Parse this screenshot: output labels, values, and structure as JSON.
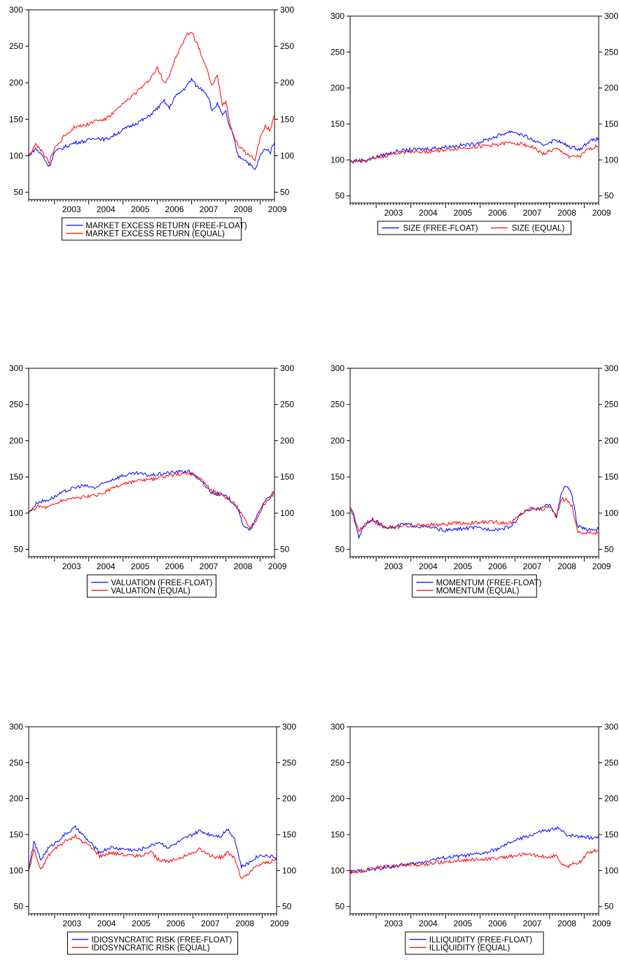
{
  "chart_data": [
    {
      "type": "line",
      "x_ticks": [
        "2003",
        "2004",
        "2005",
        "2006",
        "2007",
        "2008",
        "2009"
      ],
      "xlim": [
        "2002-04",
        "2009-06"
      ],
      "y_ticks": [
        50,
        100,
        150,
        200,
        250,
        300
      ],
      "ylim": [
        40,
        300
      ],
      "grid": false,
      "legend_position": "bottom",
      "legend_layout": "stacked",
      "series": [
        {
          "name": "MARKET EXCESS RETURN (FREE-FLOAT)",
          "color": "#0000ff",
          "x": [
            2002.25,
            2002.45,
            2002.65,
            2002.85,
            2003.0,
            2003.3,
            2003.6,
            2003.9,
            2004.2,
            2004.5,
            2004.8,
            2005.1,
            2005.4,
            2005.7,
            2006.0,
            2006.2,
            2006.35,
            2006.5,
            2006.7,
            2006.85,
            2007.0,
            2007.15,
            2007.35,
            2007.5,
            2007.6,
            2007.75,
            2007.9,
            2008.0,
            2008.1,
            2008.2,
            2008.35,
            2008.55,
            2008.7,
            2008.85,
            2009.0,
            2009.15,
            2009.3,
            2009.45
          ],
          "y": [
            100,
            110,
            100,
            85,
            105,
            112,
            118,
            120,
            125,
            122,
            130,
            138,
            145,
            152,
            165,
            175,
            165,
            180,
            188,
            195,
            205,
            195,
            190,
            180,
            160,
            172,
            155,
            160,
            140,
            130,
            100,
            95,
            88,
            80,
            100,
            110,
            105,
            125
          ]
        },
        {
          "name": "MARKET EXCESS RETURN (EQUAL)",
          "color": "#ff0000",
          "x": [
            2002.25,
            2002.45,
            2002.65,
            2002.85,
            2003.0,
            2003.3,
            2003.6,
            2003.9,
            2004.2,
            2004.5,
            2004.8,
            2005.1,
            2005.4,
            2005.7,
            2006.0,
            2006.2,
            2006.35,
            2006.5,
            2006.7,
            2006.85,
            2007.0,
            2007.15,
            2007.35,
            2007.5,
            2007.6,
            2007.75,
            2007.9,
            2008.0,
            2008.1,
            2008.2,
            2008.35,
            2008.55,
            2008.7,
            2008.85,
            2009.0,
            2009.15,
            2009.3,
            2009.45
          ],
          "y": [
            100,
            115,
            105,
            90,
            110,
            128,
            140,
            142,
            148,
            150,
            162,
            175,
            188,
            200,
            220,
            200,
            210,
            230,
            250,
            265,
            270,
            255,
            230,
            210,
            195,
            210,
            170,
            175,
            150,
            130,
            115,
            105,
            100,
            95,
            125,
            140,
            135,
            165
          ]
        }
      ]
    },
    {
      "type": "line",
      "x_ticks": [
        "2003",
        "2004",
        "2005",
        "2006",
        "2007",
        "2008",
        "2009"
      ],
      "xlim": [
        "2002-04",
        "2009-06"
      ],
      "y_ticks": [
        50,
        100,
        150,
        200,
        250,
        300
      ],
      "ylim": [
        40,
        300
      ],
      "grid": false,
      "legend_position": "bottom",
      "legend_layout": "inline",
      "series": [
        {
          "name": "SIZE (FREE-FLOAT)",
          "color": "#0000ff",
          "x": [
            2002.25,
            2002.7,
            2003.0,
            2003.3,
            2003.6,
            2004.0,
            2004.3,
            2004.6,
            2005.0,
            2005.4,
            2005.8,
            2006.2,
            2006.6,
            2006.9,
            2007.2,
            2007.5,
            2007.8,
            2008.0,
            2008.2,
            2008.4,
            2008.6,
            2008.9,
            2009.1,
            2009.3,
            2009.45
          ],
          "y": [
            98,
            100,
            104,
            108,
            112,
            114,
            115,
            116,
            118,
            120,
            122,
            128,
            135,
            140,
            135,
            128,
            120,
            125,
            128,
            122,
            118,
            115,
            125,
            128,
            130
          ]
        },
        {
          "name": "SIZE (EQUAL)",
          "color": "#ff0000",
          "x": [
            2002.25,
            2002.7,
            2003.0,
            2003.3,
            2003.6,
            2004.0,
            2004.3,
            2004.6,
            2005.0,
            2005.4,
            2005.8,
            2006.2,
            2006.6,
            2006.9,
            2007.2,
            2007.5,
            2007.8,
            2008.0,
            2008.2,
            2008.4,
            2008.6,
            2008.9,
            2009.1,
            2009.3,
            2009.45
          ],
          "y": [
            97,
            99,
            102,
            106,
            110,
            112,
            111,
            112,
            114,
            116,
            118,
            120,
            122,
            124,
            122,
            118,
            108,
            112,
            115,
            110,
            104,
            105,
            114,
            118,
            120
          ]
        }
      ]
    },
    {
      "type": "line",
      "x_ticks": [
        "2003",
        "2004",
        "2005",
        "2006",
        "2007",
        "2008",
        "2009"
      ],
      "xlim": [
        "2002-04",
        "2009-06"
      ],
      "y_ticks": [
        50,
        100,
        150,
        200,
        250,
        300
      ],
      "ylim": [
        40,
        300
      ],
      "grid": false,
      "legend_position": "bottom",
      "legend_layout": "stacked",
      "series": [
        {
          "name": "VALUATION (FREE-FLOAT)",
          "color": "#0000ff",
          "x": [
            2002.25,
            2002.5,
            2002.8,
            2003.1,
            2003.4,
            2003.8,
            2004.2,
            2004.6,
            2005.0,
            2005.4,
            2005.8,
            2006.2,
            2006.6,
            2006.9,
            2007.1,
            2007.3,
            2007.6,
            2007.9,
            2008.1,
            2008.3,
            2008.5,
            2008.7,
            2008.9,
            2009.1,
            2009.3,
            2009.45
          ],
          "y": [
            100,
            115,
            118,
            125,
            132,
            138,
            135,
            145,
            152,
            155,
            152,
            155,
            157,
            158,
            152,
            142,
            128,
            125,
            120,
            110,
            85,
            75,
            95,
            115,
            125,
            130
          ]
        },
        {
          "name": "VALUATION (EQUAL)",
          "color": "#ff0000",
          "x": [
            2002.25,
            2002.5,
            2002.8,
            2003.1,
            2003.4,
            2003.8,
            2004.2,
            2004.6,
            2005.0,
            2005.4,
            2005.8,
            2006.2,
            2006.6,
            2006.9,
            2007.1,
            2007.3,
            2007.6,
            2007.9,
            2008.1,
            2008.3,
            2008.5,
            2008.7,
            2008.9,
            2009.1,
            2009.3,
            2009.45
          ],
          "y": [
            100,
            110,
            108,
            115,
            120,
            122,
            124,
            132,
            140,
            144,
            146,
            150,
            154,
            155,
            152,
            145,
            130,
            125,
            118,
            112,
            95,
            80,
            92,
            112,
            122,
            128
          ]
        }
      ]
    },
    {
      "type": "line",
      "x_ticks": [
        "2003",
        "2004",
        "2005",
        "2006",
        "2007",
        "2008",
        "2009"
      ],
      "xlim": [
        "2002-04",
        "2009-06"
      ],
      "y_ticks": [
        50,
        100,
        150,
        200,
        250,
        300
      ],
      "ylim": [
        40,
        300
      ],
      "grid": false,
      "legend_position": "bottom",
      "legend_layout": "stacked",
      "series": [
        {
          "name": "MOMENTUM (FREE-FLOAT)",
          "color": "#0000ff",
          "x": [
            2002.25,
            2002.35,
            2002.5,
            2002.7,
            2002.9,
            2003.2,
            2003.5,
            2003.8,
            2004.2,
            2004.6,
            2005.0,
            2005.4,
            2005.8,
            2006.2,
            2006.6,
            2006.9,
            2007.2,
            2007.5,
            2007.8,
            2008.0,
            2008.2,
            2008.35,
            2008.5,
            2008.65,
            2008.8,
            2009.0,
            2009.2,
            2009.45
          ],
          "y": [
            105,
            95,
            68,
            85,
            92,
            82,
            80,
            85,
            82,
            80,
            76,
            78,
            80,
            78,
            78,
            82,
            100,
            105,
            108,
            112,
            95,
            130,
            138,
            125,
            82,
            78,
            78,
            78
          ]
        },
        {
          "name": "MOMENTUM (EQUAL)",
          "color": "#ff0000",
          "x": [
            2002.25,
            2002.35,
            2002.5,
            2002.7,
            2002.9,
            2003.2,
            2003.5,
            2003.8,
            2004.2,
            2004.6,
            2005.0,
            2005.4,
            2005.8,
            2006.2,
            2006.6,
            2006.9,
            2007.2,
            2007.5,
            2007.8,
            2008.0,
            2008.2,
            2008.35,
            2008.5,
            2008.65,
            2008.8,
            2009.0,
            2009.2,
            2009.45
          ],
          "y": [
            108,
            98,
            75,
            88,
            90,
            82,
            80,
            82,
            83,
            84,
            85,
            86,
            86,
            88,
            87,
            87,
            100,
            108,
            105,
            110,
            95,
            120,
            118,
            110,
            75,
            72,
            73,
            73
          ]
        }
      ]
    },
    {
      "type": "line",
      "x_ticks": [
        "2003",
        "2004",
        "2005",
        "2006",
        "2007",
        "2008",
        "2009"
      ],
      "xlim": [
        "2002-04",
        "2009-06"
      ],
      "y_ticks": [
        50,
        100,
        150,
        200,
        250,
        300
      ],
      "ylim": [
        40,
        300
      ],
      "grid": false,
      "legend_position": "bottom",
      "legend_layout": "stacked",
      "series": [
        {
          "name": "IDIOSYNCRATIC RISK (FREE-FLOAT)",
          "color": "#0000ff",
          "x": [
            2002.25,
            2002.4,
            2002.6,
            2002.8,
            2003.0,
            2003.3,
            2003.6,
            2003.8,
            2004.0,
            2004.3,
            2004.6,
            2005.0,
            2005.4,
            2005.8,
            2006.0,
            2006.3,
            2006.6,
            2006.9,
            2007.2,
            2007.5,
            2007.8,
            2008.0,
            2008.2,
            2008.4,
            2008.6,
            2008.8,
            2009.0,
            2009.2,
            2009.45
          ],
          "y": [
            100,
            140,
            115,
            130,
            138,
            150,
            160,
            150,
            140,
            125,
            132,
            130,
            128,
            135,
            140,
            132,
            140,
            148,
            155,
            150,
            148,
            158,
            145,
            105,
            110,
            118,
            122,
            120,
            118
          ]
        },
        {
          "name": "IDIOSYNCRATIC RISK (EQUAL)",
          "color": "#ff0000",
          "x": [
            2002.25,
            2002.4,
            2002.6,
            2002.8,
            2003.0,
            2003.3,
            2003.6,
            2003.8,
            2004.0,
            2004.3,
            2004.6,
            2005.0,
            2005.4,
            2005.8,
            2006.0,
            2006.3,
            2006.6,
            2006.9,
            2007.2,
            2007.5,
            2007.8,
            2008.0,
            2008.2,
            2008.4,
            2008.6,
            2008.8,
            2009.0,
            2009.2,
            2009.45
          ],
          "y": [
            98,
            130,
            100,
            120,
            130,
            140,
            148,
            140,
            135,
            120,
            125,
            122,
            120,
            125,
            115,
            112,
            118,
            122,
            130,
            120,
            118,
            125,
            118,
            88,
            95,
            105,
            110,
            112,
            115
          ]
        }
      ]
    },
    {
      "type": "line",
      "x_ticks": [
        "2003",
        "2004",
        "2005",
        "2006",
        "2007",
        "2008",
        "2009"
      ],
      "xlim": [
        "2002-04",
        "2009-06"
      ],
      "y_ticks": [
        50,
        100,
        150,
        200,
        250,
        300
      ],
      "ylim": [
        40,
        300
      ],
      "grid": false,
      "legend_position": "bottom",
      "legend_layout": "stacked",
      "series": [
        {
          "name": "ILLIQUIDITY (FREE-FLOAT)",
          "color": "#0000ff",
          "x": [
            2002.25,
            2002.6,
            2003.0,
            2003.4,
            2003.8,
            2004.2,
            2004.6,
            2005.0,
            2005.4,
            2005.8,
            2006.2,
            2006.6,
            2006.9,
            2007.2,
            2007.5,
            2007.8,
            2008.0,
            2008.2,
            2008.5,
            2008.8,
            2009.0,
            2009.2,
            2009.45
          ],
          "y": [
            98,
            100,
            102,
            105,
            108,
            110,
            115,
            118,
            120,
            122,
            125,
            132,
            140,
            145,
            150,
            155,
            155,
            160,
            150,
            148,
            148,
            145,
            148
          ]
        },
        {
          "name": "ILLIQUIDITY (EQUAL)",
          "color": "#ff0000",
          "x": [
            2002.25,
            2002.6,
            2003.0,
            2003.4,
            2003.8,
            2004.2,
            2004.6,
            2005.0,
            2005.4,
            2005.8,
            2006.2,
            2006.6,
            2006.9,
            2007.2,
            2007.5,
            2007.8,
            2008.0,
            2008.2,
            2008.35,
            2008.5,
            2008.7,
            2008.9,
            2009.1,
            2009.3,
            2009.45
          ],
          "y": [
            98,
            100,
            104,
            106,
            108,
            107,
            110,
            112,
            114,
            115,
            116,
            118,
            120,
            122,
            122,
            120,
            118,
            122,
            108,
            105,
            110,
            112,
            125,
            128,
            130
          ]
        }
      ]
    }
  ]
}
